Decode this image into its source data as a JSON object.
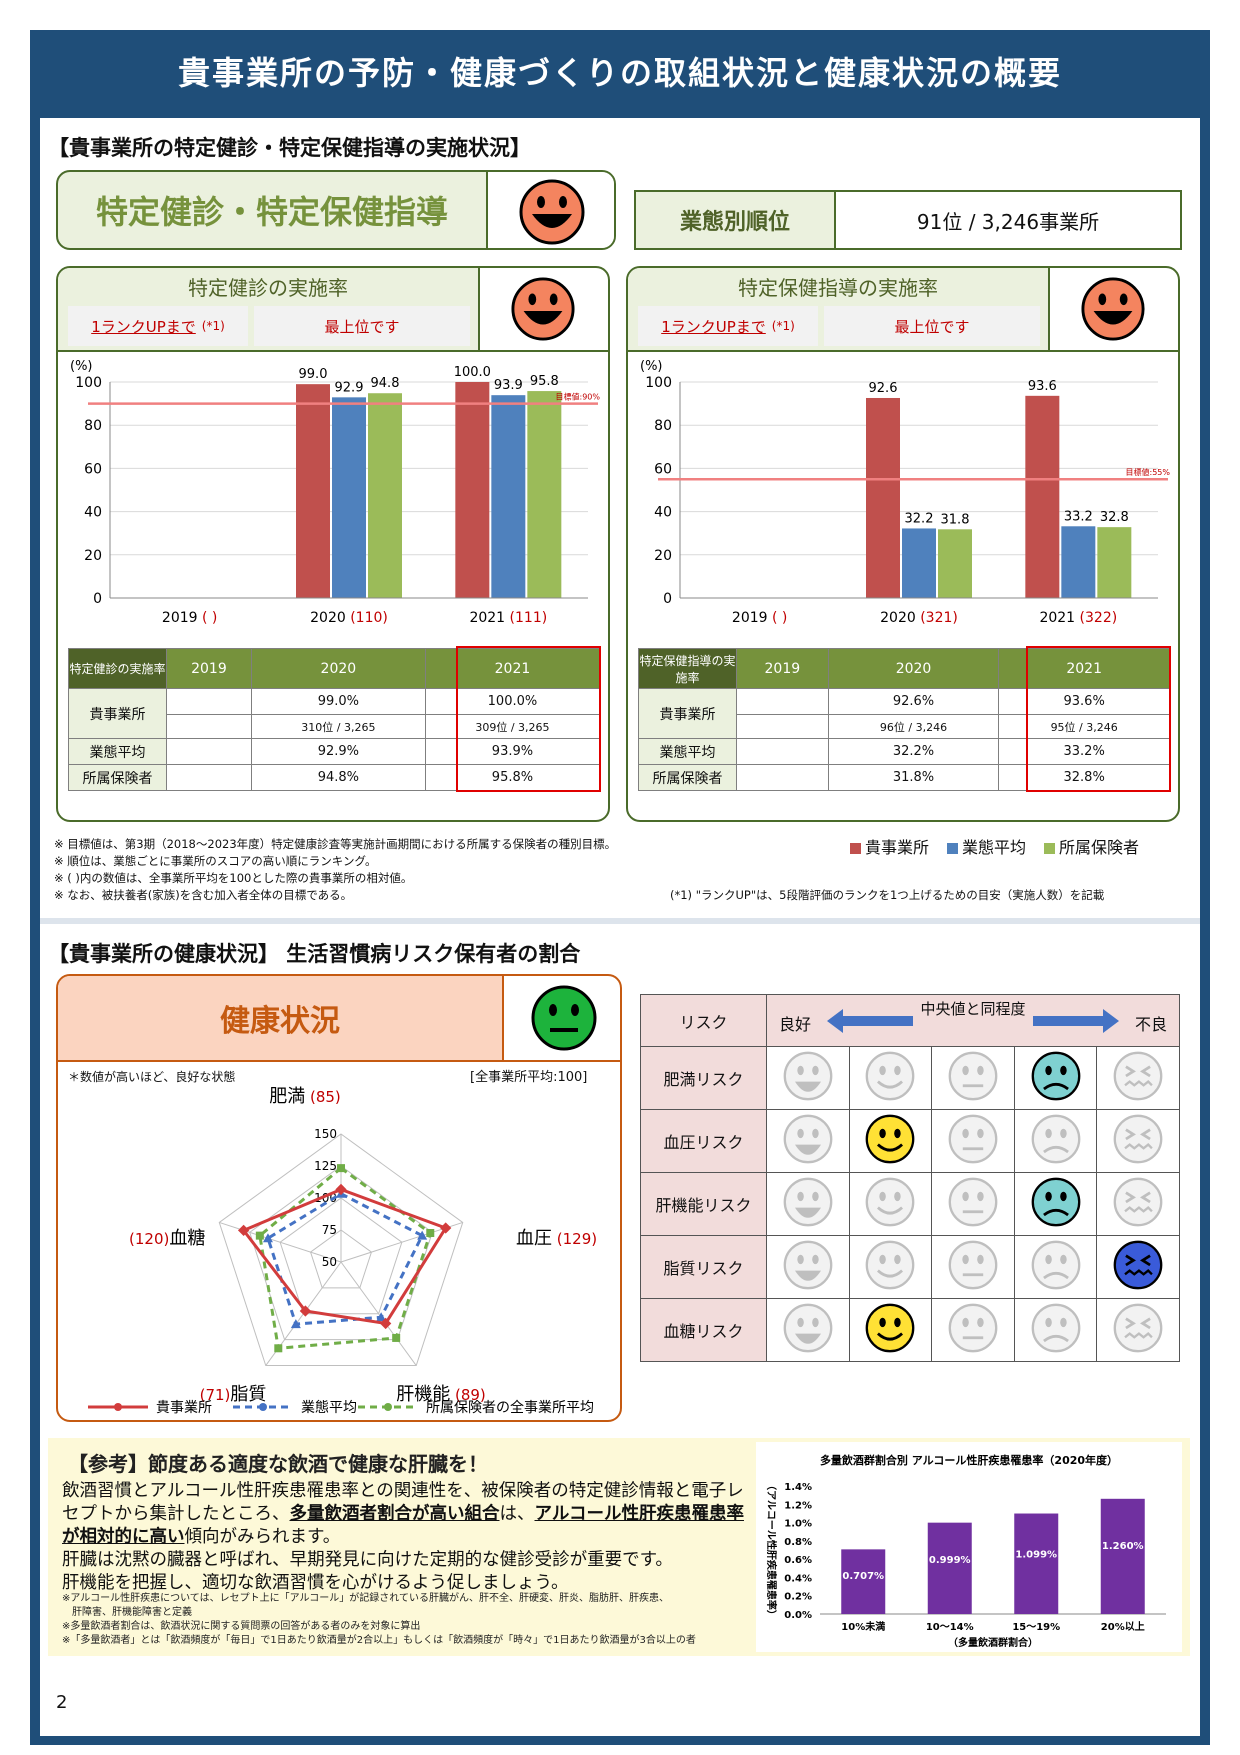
{
  "page_title": "貴事業所の予防・健康づくりの取組状況と健康状況の概要",
  "section1": {
    "heading": "【貴事業所の特定健診・特定保健指導の実施状況】",
    "main_label": "特定健診・特定保健指導",
    "rank_label": "業態別順位",
    "rank_value": "91位 / 3,246事業所"
  },
  "kenshin": {
    "title": "特定健診の実施率",
    "rankup_label": "1ランクUPまで",
    "rankup_note": "(*1)",
    "rankup_value": "最上位です",
    "chart_data": {
      "type": "bar",
      "categories": [
        "2019",
        "2020",
        "2021"
      ],
      "category_suffix": [
        "( )",
        "(110)",
        "(111)"
      ],
      "series": [
        {
          "name": "貴事業所",
          "values": [
            null,
            99.0,
            100.0
          ],
          "color": "#c0504d"
        },
        {
          "name": "業態平均",
          "values": [
            null,
            92.9,
            93.9
          ],
          "color": "#4f81bd"
        },
        {
          "name": "所属保険者",
          "values": [
            null,
            94.8,
            95.8
          ],
          "color": "#9bbb59"
        }
      ],
      "ylabel": "(%)",
      "ylim": [
        0,
        100
      ],
      "yticks": [
        0,
        20,
        40,
        60,
        80,
        100
      ],
      "target": 90,
      "target_label": "目標値:90%"
    },
    "table": {
      "corner": "特定健診の実施率",
      "years": [
        "2019",
        "2020",
        "2021"
      ],
      "rows": [
        {
          "label": "貴事業所",
          "values": [
            "",
            "99.0%",
            "100.0%"
          ],
          "ranks": [
            "",
            "310位 / 3,265",
            "309位 / 3,265"
          ]
        },
        {
          "label": "業態平均",
          "values": [
            "",
            "92.9%",
            "93.9%"
          ]
        },
        {
          "label": "所属保険者",
          "values": [
            "",
            "94.8%",
            "95.8%"
          ]
        }
      ]
    }
  },
  "hoken": {
    "title": "特定保健指導の実施率",
    "rankup_label": "1ランクUPまで",
    "rankup_note": "(*1)",
    "rankup_value": "最上位です",
    "chart_data": {
      "type": "bar",
      "categories": [
        "2019",
        "2020",
        "2021"
      ],
      "category_suffix": [
        "( )",
        "(321)",
        "(322)"
      ],
      "series": [
        {
          "name": "貴事業所",
          "values": [
            null,
            92.6,
            93.6
          ],
          "color": "#c0504d"
        },
        {
          "name": "業態平均",
          "values": [
            null,
            32.2,
            33.2
          ],
          "color": "#4f81bd"
        },
        {
          "name": "所属保険者",
          "values": [
            null,
            31.8,
            32.8
          ],
          "color": "#9bbb59"
        }
      ],
      "ylabel": "(%)",
      "ylim": [
        0,
        100
      ],
      "yticks": [
        0,
        20,
        40,
        60,
        80,
        100
      ],
      "target": 55,
      "target_label": "目標値:55%"
    },
    "table": {
      "corner": "特定保健指導の実施率",
      "years": [
        "2019",
        "2020",
        "2021"
      ],
      "rows": [
        {
          "label": "貴事業所",
          "values": [
            "",
            "92.6%",
            "93.6%"
          ],
          "ranks": [
            "",
            "96位 / 3,246",
            "95位 / 3,246"
          ]
        },
        {
          "label": "業態平均",
          "values": [
            "",
            "32.2%",
            "33.2%"
          ]
        },
        {
          "label": "所属保険者",
          "values": [
            "",
            "31.8%",
            "32.8%"
          ]
        }
      ]
    }
  },
  "notes": [
    "※ 目標値は、第3期（2018～2023年度）特定健康診査等実施計画期間における所属する保険者の種別目標。",
    "※ 順位は、業態ごとに事業所のスコアの高い順にランキング。",
    "※ ( )内の数値は、全事業所平均を100とした際の貴事業所の相対値。",
    "※ なお、被扶養者(家族)を含む加入者全体の目標である。"
  ],
  "note_rankup": "(*1) \"ランクUP\"は、5段階評価のランクを1つ上げるための目安（実施人数）を記載",
  "legend": [
    "貴事業所",
    "業態平均",
    "所属保険者"
  ],
  "section2": {
    "heading": "【貴事業所の健康状況】 生活習慣病リスク保有者の割合",
    "main_label": "健康状況",
    "radar_note": "＊数値が高いほど、良好な状態",
    "radar_avg_note": "[全事業所平均:100]",
    "radar": {
      "axes": [
        {
          "name": "肥満",
          "value": "(85)"
        },
        {
          "name": "血圧",
          "value": "(129)"
        },
        {
          "name": "肝機能",
          "value": "(89)"
        },
        {
          "name": "脂質",
          "value": "(71)"
        },
        {
          "name": "血糖",
          "value": "(120)"
        }
      ],
      "ticks": [
        50,
        75,
        100,
        125,
        150
      ],
      "series": [
        {
          "name": "貴事業所",
          "values": [
            85,
            129,
            89,
            71,
            120
          ],
          "color": "#d23c3c"
        },
        {
          "name": "業態平均",
          "values": [
            80,
            100,
            80,
            90,
            90
          ],
          "color": "#4472c4"
        },
        {
          "name": "所属保険者の全事業所平均",
          "values": [
            110,
            110,
            110,
            125,
            100
          ],
          "color": "#70ad47"
        }
      ]
    },
    "risk_table": {
      "head_risk": "リスク",
      "head_good": "良好",
      "head_mid": "中央値と同程度",
      "head_bad": "不良",
      "rows": [
        {
          "label": "肥満リスク",
          "active": 3
        },
        {
          "label": "血圧リスク",
          "active": 1
        },
        {
          "label": "肝機能リスク",
          "active": 3
        },
        {
          "label": "脂質リスク",
          "active": 4
        },
        {
          "label": "血糖リスク",
          "active": 1
        }
      ]
    }
  },
  "reference": {
    "heading": "【参考】節度ある適度な飲酒で健康な肝臓を！",
    "p1_a": "飲酒習慣とアルコール性肝疾患罹患率との関連性を、被保険者の特定健診情報と電子レセプトから集計したところ、",
    "p1_b": "多量飲酒者割合が高い組合",
    "p1_c": "は、",
    "p1_d": "アルコール性肝疾患罹患率が相対的に高い",
    "p1_e": "傾向がみられます。",
    "p2": "肝臓は沈黙の臓器と呼ばれ、早期発見に向けた定期的な健診受診が重要です。",
    "p3": "肝機能を把握し、適切な飲酒習慣を心がけるよう促しましょう。",
    "small_notes": [
      "※アルコール性肝疾患については、レセプト上に「アルコール」が記録されている肝臓がん、肝不全、肝硬変、肝炎、脂肪肝、肝疾患、",
      "　肝障害、肝機能障害と定義",
      "※多量飲酒者割合は、飲酒状況に関する質問票の回答がある者のみを対象に算出",
      "※「多量飲酒者」とは「飲酒頻度が「毎日」で1日あたり飲酒量が2合以上」もしくは「飲酒頻度が「時々」で1日あたり飲酒量が3合以上の者"
    ],
    "chart_data": {
      "type": "bar",
      "title": "多量飲酒群割合別 アルコール性肝疾患罹患率（2020年度）",
      "ylabel": "（アルコール性肝疾患罹患率）",
      "xlabel": "（多量飲酒群割合）",
      "categories": [
        "10%未満",
        "10～14%",
        "15～19%",
        "20%以上"
      ],
      "values": [
        0.707,
        0.999,
        1.099,
        1.26
      ],
      "value_labels": [
        "0.707%",
        "0.999%",
        "1.099%",
        "1.260%"
      ],
      "ylim": [
        0,
        1.4
      ],
      "yticks": [
        "0.0%",
        "0.2%",
        "0.4%",
        "0.6%",
        "0.8%",
        "1.0%",
        "1.2%",
        "1.4%"
      ],
      "color": "#7030a0"
    }
  },
  "page_number": "2"
}
